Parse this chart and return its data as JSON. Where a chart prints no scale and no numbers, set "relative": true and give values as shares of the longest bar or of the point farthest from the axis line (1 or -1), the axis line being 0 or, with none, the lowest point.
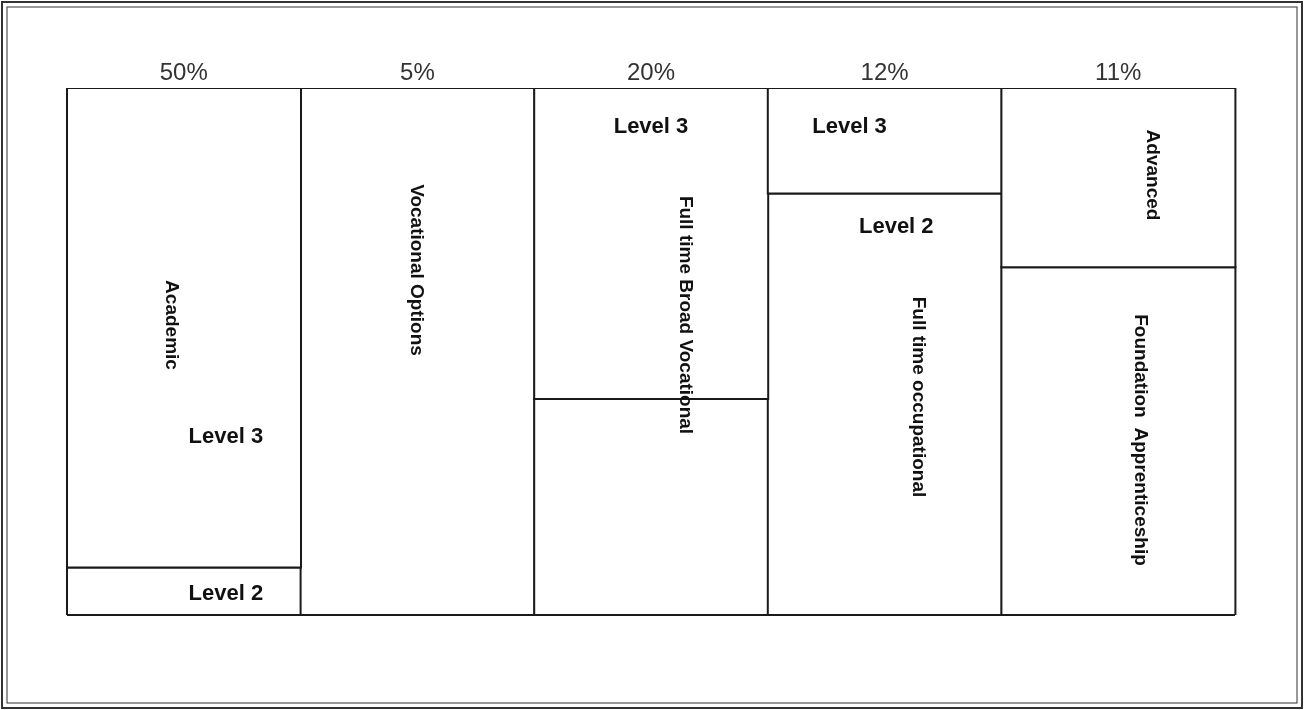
{
  "chart_data": {
    "type": "bar",
    "relative": true,
    "stacked": true,
    "categories": [
      "50%",
      "5%",
      "20%",
      "12%",
      "11%"
    ],
    "series": [
      {
        "color": "#ffffff",
        "values": [
          0.09,
          1,
          0.41,
          0.8,
          0.66
        ]
      },
      {
        "color": "#ffffff",
        "values": [
          0.91,
          null,
          0.59,
          0.2,
          0.34
        ]
      }
    ],
    "annotations": [
      "Level 2",
      "Level 3",
      "Level 3",
      "Level 3",
      "Level 2",
      "Academic",
      "Vocational Options",
      "Full time Broad Vocational",
      "Full time occupational",
      "Advanced",
      "Foundation  Apprenticeship"
    ]
  }
}
